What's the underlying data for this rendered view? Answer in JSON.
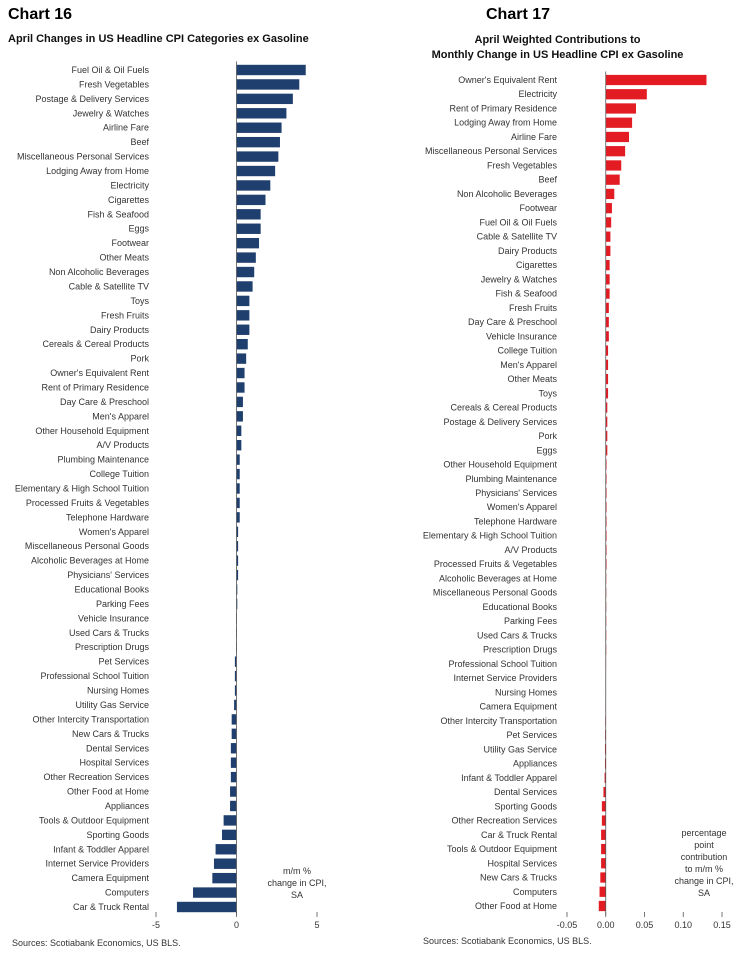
{
  "colors": {
    "left_bar": "#1f3f6e",
    "right_bar": "#e31b23",
    "axis": "#555555"
  },
  "chart_data": [
    {
      "type": "bar",
      "orientation": "horizontal",
      "chart_number": "Chart 16",
      "title": "April Changes in US Headline CPI Categories ex Gasoline",
      "unit_note": [
        "m/m %",
        "change in CPI,",
        "SA"
      ],
      "source": "Sources: Scotiabank Economics, US BLS.",
      "xlim": [
        -5,
        5
      ],
      "xticks": [
        -5,
        0,
        5
      ],
      "categories": [
        "Fuel Oil & Oil Fuels",
        "Fresh Vegetables",
        "Postage & Delivery Services",
        "Jewelry & Watches",
        "Airline Fare",
        "Beef",
        "Miscellaneous Personal Services",
        "Lodging Away from Home",
        "Electricity",
        "Cigarettes",
        "Fish & Seafood",
        "Eggs",
        "Footwear",
        "Other Meats",
        "Non Alcoholic Beverages",
        "Cable & Satellite TV",
        "Toys",
        "Fresh Fruits",
        "Dairy Products",
        "Cereals & Cereal Products",
        "Pork",
        "Owner's Equivalent Rent",
        "Rent of Primary Residence",
        "Day Care & Preschool",
        "Men's Apparel",
        "Other Household Equipment",
        "A/V Products",
        "Plumbing Maintenance",
        "College Tuition",
        "Elementary & High School Tuition",
        "Processed Fruits & Vegetables",
        "Telephone Hardware",
        "Women's Apparel",
        "Miscellaneous Personal Goods",
        "Alcoholic Beverages at Home",
        "Physicians' Services",
        "Educational Books",
        "Parking Fees",
        "Vehicle Insurance",
        "Used Cars & Trucks",
        "Prescription Drugs",
        "Pet Services",
        "Professional School Tuition",
        "Nursing Homes",
        "Utility Gas Service",
        "Other Intercity Transportation",
        "New Cars & Trucks",
        "Dental Services",
        "Hospital Services",
        "Other Recreation Services",
        "Other Food at Home",
        "Appliances",
        "Tools & Outdoor Equipment",
        "Sporting Goods",
        "Infant & Toddler Apparel",
        "Internet Service Providers",
        "Camera Equipment",
        "Computers",
        "Car & Truck Rental"
      ],
      "values": [
        4.3,
        3.9,
        3.5,
        3.1,
        2.8,
        2.7,
        2.6,
        2.4,
        2.1,
        1.8,
        1.5,
        1.5,
        1.4,
        1.2,
        1.1,
        1.0,
        0.8,
        0.8,
        0.8,
        0.7,
        0.6,
        0.5,
        0.5,
        0.4,
        0.4,
        0.3,
        0.3,
        0.2,
        0.2,
        0.2,
        0.2,
        0.2,
        0.1,
        0.1,
        0.1,
        0.1,
        0.05,
        0.05,
        0.03,
        0.02,
        0.01,
        -0.1,
        -0.1,
        -0.1,
        -0.15,
        -0.3,
        -0.3,
        -0.35,
        -0.35,
        -0.35,
        -0.4,
        -0.4,
        -0.8,
        -0.9,
        -1.3,
        -1.4,
        -1.5,
        -2.7,
        -3.7
      ]
    },
    {
      "type": "bar",
      "orientation": "horizontal",
      "chart_number": "Chart 17",
      "title_lines": [
        "April Weighted Contributions to",
        "Monthly Change in US Headline CPI ex Gasoline"
      ],
      "unit_note": [
        "percentage",
        "point",
        "contribution",
        "to m/m %",
        "change in CPI,",
        "SA"
      ],
      "source": "Sources: Scotiabank Economics, US BLS.",
      "xlim": [
        -0.05,
        0.15
      ],
      "xticks": [
        "-0.05",
        "0.00",
        "0.05",
        "0.10",
        "0.15"
      ],
      "categories": [
        "Owner's Equivalent Rent",
        "Electricity",
        "Rent of Primary Residence",
        "Lodging Away from Home",
        "Airline Fare",
        "Miscellaneous Personal Services",
        "Fresh Vegetables",
        "Beef",
        "Non Alcoholic Beverages",
        "Footwear",
        "Fuel Oil & Oil Fuels",
        "Cable & Satellite TV",
        "Dairy Products",
        "Cigarettes",
        "Jewelry & Watches",
        "Fish & Seafood",
        "Fresh Fruits",
        "Day Care & Preschool",
        "Vehicle Insurance",
        "College Tuition",
        "Men's Apparel",
        "Other Meats",
        "Toys",
        "Cereals & Cereal Products",
        "Postage & Delivery Services",
        "Pork",
        "Eggs",
        "Other Household Equipment",
        "Plumbing Maintenance",
        "Physicians' Services",
        "Women's Apparel",
        "Telephone Hardware",
        "Elementary & High School Tuition",
        "A/V Products",
        "Processed Fruits & Vegetables",
        "Alcoholic Beverages at Home",
        "Miscellaneous Personal Goods",
        "Educational Books",
        "Parking Fees",
        "Used Cars & Trucks",
        "Prescription Drugs",
        "Professional School Tuition",
        "Internet Service Providers",
        "Nursing Homes",
        "Camera Equipment",
        "Other Intercity Transportation",
        "Pet Services",
        "Utility Gas Service",
        "Appliances",
        "Infant & Toddler Apparel",
        "Dental Services",
        "Sporting Goods",
        "Other Recreation Services",
        "Car & Truck Rental",
        "Tools & Outdoor Equipment",
        "Hospital Services",
        "New Cars & Trucks",
        "Computers",
        "Other Food at Home"
      ],
      "values": [
        0.13,
        0.053,
        0.039,
        0.034,
        0.03,
        0.025,
        0.02,
        0.018,
        0.011,
        0.008,
        0.007,
        0.006,
        0.006,
        0.005,
        0.005,
        0.005,
        0.004,
        0.004,
        0.004,
        0.003,
        0.003,
        0.003,
        0.003,
        0.002,
        0.002,
        0.002,
        0.002,
        0.001,
        0.001,
        0.001,
        0.001,
        0.001,
        0.001,
        0.001,
        0.001,
        0.0005,
        0.0005,
        0.0003,
        0.0002,
        0.0001,
        0.0001,
        -0.0002,
        -0.0003,
        -0.0003,
        -0.0004,
        -0.0006,
        -0.0008,
        -0.001,
        -0.001,
        -0.0015,
        -0.003,
        -0.005,
        -0.005,
        -0.006,
        -0.006,
        -0.006,
        -0.007,
        -0.008,
        -0.009
      ]
    }
  ]
}
